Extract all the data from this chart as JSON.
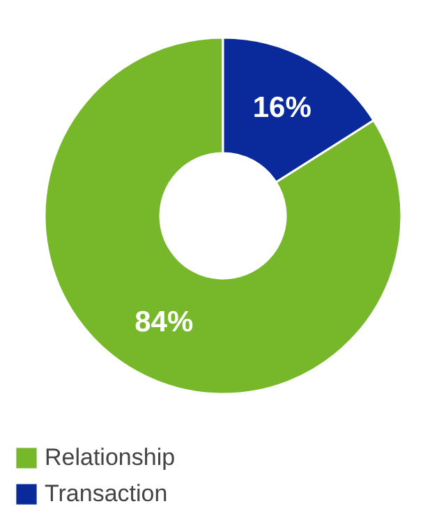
{
  "chart_data": {
    "type": "donut",
    "categories": [
      "Relationship",
      "Transaction"
    ],
    "values": [
      84,
      16
    ],
    "colors": [
      "#77b82a",
      "#0a2a9c"
    ],
    "value_labels": [
      "84%",
      "16%"
    ],
    "legend": "bottom"
  }
}
